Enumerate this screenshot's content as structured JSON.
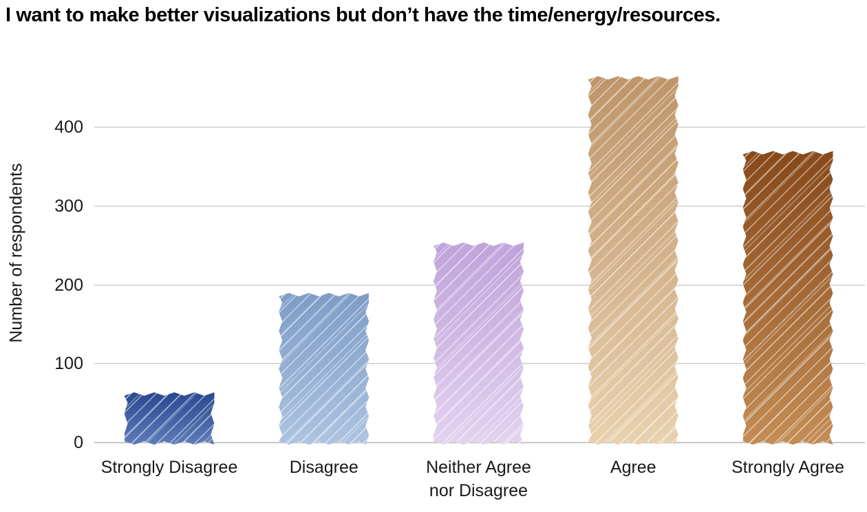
{
  "chart_data": {
    "type": "bar",
    "title": "I want to make better visualizations but don’t have the time/energy/resources.",
    "xlabel": "",
    "ylabel": "Number of respondents",
    "categories": [
      "Strongly Disagree",
      "Disagree",
      "Neither Agree nor Disagree",
      "Agree",
      "Strongly Agree"
    ],
    "tick_labels": [
      "Strongly Disagree",
      "Disagree",
      "Neither Agree\nnor Disagree",
      "Agree",
      "Strongly Agree"
    ],
    "values": [
      62,
      188,
      252,
      463,
      368
    ],
    "yticks": [
      0,
      100,
      200,
      300,
      400
    ],
    "ylim": [
      0,
      480
    ],
    "grid": "horizontal",
    "legend": "none",
    "style": "hand-drawn crayon texture: zigzag bar edges, diagonal white hatch lines, vertical top-to-bottom lightening gradient",
    "bar_colors": [
      {
        "name": "dark-blue",
        "top": "#2a4890",
        "bottom": "#5e7cb8"
      },
      {
        "name": "light-blue",
        "top": "#7d9cc6",
        "bottom": "#adc4e1"
      },
      {
        "name": "lavender",
        "top": "#bfa3da",
        "bottom": "#e3d2f0"
      },
      {
        "name": "tan",
        "top": "#be9569",
        "bottom": "#e9d1af"
      },
      {
        "name": "brown",
        "top": "#88491a",
        "bottom": "#c38d55"
      }
    ],
    "gridline_color": "#dadada",
    "baseline_color": "#c6c6c6",
    "text_color": "#191919"
  }
}
